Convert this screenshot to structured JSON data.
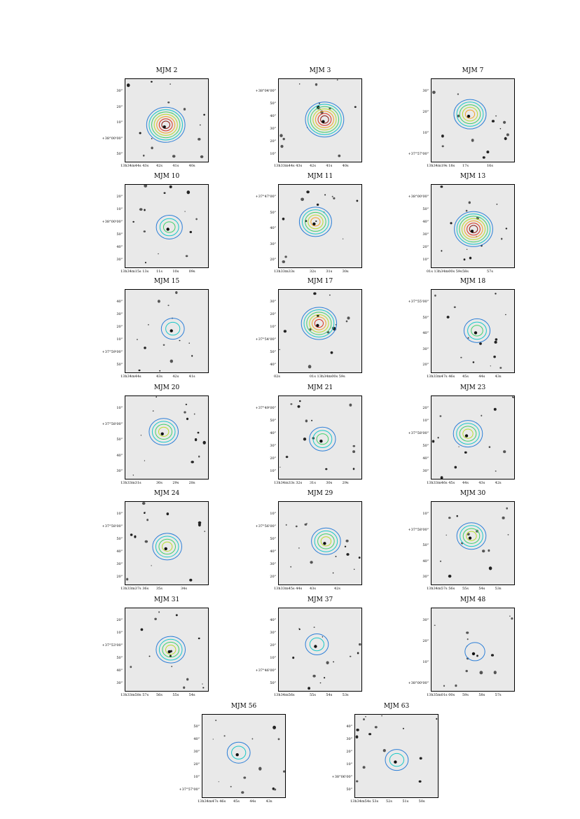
{
  "panels": [
    {
      "title": "MJM 2",
      "x_labels": [
        "13h34m44s 43s",
        "42s",
        "41s",
        "40s"
      ],
      "y_labels": [
        "30\"",
        "20\"",
        "10\"",
        "+38°00'00\"",
        "50\""
      ],
      "y_major_index": 3
    },
    {
      "title": "MJM 3",
      "x_labels": [
        "13h33m44s 43s",
        "42s",
        "41s",
        "40s"
      ],
      "y_labels": [
        "+38°04'00\"",
        "50\"",
        "40\"",
        "30\"",
        "20\"",
        "10\""
      ],
      "y_major_index": 0
    },
    {
      "title": "MJM 7",
      "x_labels": [
        "13h34m19s 18s",
        "17s",
        "16s"
      ],
      "y_labels": [
        "30\"",
        "20\"",
        "10\"",
        "+37°57'00\""
      ],
      "y_major_index": 3
    },
    {
      "title": "MJM 10",
      "x_labels": [
        "13h34m15s 13s",
        "11s",
        "10s",
        "09s"
      ],
      "y_labels": [
        "20\"",
        "10\"",
        "+38°00'00\"",
        "50\"",
        "40\"",
        "30\""
      ],
      "y_major_index": 2
    },
    {
      "title": "MJM 11",
      "x_labels": [
        "13h33m33s",
        "32s",
        "31s",
        "30s"
      ],
      "y_labels": [
        "+37°47'00\"",
        "50\"",
        "40\"",
        "30\"",
        "20\""
      ],
      "y_major_index": 0
    },
    {
      "title": "MJM 13",
      "x_labels": [
        "01s 13h34m00s 59s",
        "58s",
        "57s"
      ],
      "y_labels": [
        "+38°00'00\"",
        "50\"",
        "40\"",
        "30\"",
        "20\"",
        "10\""
      ],
      "y_major_index": 0
    },
    {
      "title": "MJM 15",
      "x_labels": [
        "13h34m44s",
        "43s",
        "42s",
        "41s"
      ],
      "y_labels": [
        "40\"",
        "30\"",
        "20\"",
        "10\"",
        "+37°59'00\"",
        "50\""
      ],
      "y_major_index": 4
    },
    {
      "title": "MJM 17",
      "x_labels": [
        "02s",
        "01s 13h34m00s 59s"
      ],
      "y_labels": [
        "30\"",
        "20\"",
        "10\"",
        "+37°54'00\"",
        "50\"",
        "40\""
      ],
      "y_major_index": 3
    },
    {
      "title": "MJM 18",
      "x_labels": [
        "13h33m47s 46s",
        "45s",
        "44s",
        "43s"
      ],
      "y_labels": [
        "+37°55'00\"",
        "50\"",
        "40\"",
        "30\"",
        "20\""
      ],
      "y_major_index": 0
    },
    {
      "title": "MJM 20",
      "x_labels": [
        "13h33m31s",
        "30s",
        "29s",
        "28s"
      ],
      "y_labels": [
        "10\"",
        "+37°58'00\"",
        "50\"",
        "40\"",
        "30\""
      ],
      "y_major_index": 1
    },
    {
      "title": "MJM 21",
      "x_labels": [
        "13h34m33s 32s",
        "31s",
        "30s",
        "29s"
      ],
      "y_labels": [
        "+37°49'00\"",
        "50\"",
        "40\"",
        "30\"",
        "20\"",
        "10\""
      ],
      "y_major_index": 0
    },
    {
      "title": "MJM 23",
      "x_labels": [
        "13h33m46s 45s",
        "44s",
        "43s",
        "42s"
      ],
      "y_labels": [
        "20\"",
        "10\"",
        "+37°58'00\"",
        "50\"",
        "40\"",
        "30\""
      ],
      "y_major_index": 2
    },
    {
      "title": "MJM 24",
      "x_labels": [
        "13h33m37s 36s",
        "35s",
        "34s"
      ],
      "y_labels": [
        "10\"",
        "+37°58'00\"",
        "50\"",
        "40\"",
        "30\"",
        "20\""
      ],
      "y_major_index": 1
    },
    {
      "title": "MJM 29",
      "x_labels": [
        "13h33m45s 44s",
        "43s",
        "42s"
      ],
      "y_labels": [
        "10\"",
        "+37°56'00\"",
        "50\"",
        "40\"",
        "30\"",
        "20\""
      ],
      "y_major_index": 1
    },
    {
      "title": "MJM 30",
      "x_labels": [
        "13h34m57s 56s",
        "55s",
        "54s",
        "53s"
      ],
      "y_labels": [
        "10\"",
        "+37°58'00\"",
        "50\"",
        "40\"",
        "30\""
      ],
      "y_major_index": 1
    },
    {
      "title": "MJM 31",
      "x_labels": [
        "13h33m58s 57s",
        "56s",
        "55s",
        "54s"
      ],
      "y_labels": [
        "20\"",
        "10\"",
        "+37°53'00\"",
        "50\"",
        "40\"",
        "30\""
      ],
      "y_major_index": 2
    },
    {
      "title": "MJM 37",
      "x_labels": [
        "13h34m56s",
        "55s",
        "54s",
        "53s"
      ],
      "y_labels": [
        "40\"",
        "30\"",
        "20\"",
        "10\"",
        "+37°46'00\"",
        "50\""
      ],
      "y_major_index": 4
    },
    {
      "title": "MJM 48",
      "x_labels": [
        "13h35m01s 00s",
        "59s",
        "58s",
        "57s"
      ],
      "y_labels": [
        "30\"",
        "20\"",
        "10\"",
        "+38°00'00\""
      ],
      "y_major_index": 3
    },
    {
      "title": "MJM 56",
      "x_labels": [
        "13h34m47s 46s",
        "45s",
        "44s",
        "43s"
      ],
      "y_labels": [
        "50\"",
        "40\"",
        "30\"",
        "20\"",
        "10\"",
        "+37°57'00\""
      ],
      "y_major_index": 5
    },
    {
      "title": "MJM 63",
      "x_labels": [
        "13h34m54s 53s",
        "52s",
        "51s",
        "50s"
      ],
      "y_labels": [
        "40\"",
        "30\"",
        "20\"",
        "10\"",
        "+38°06'00\"",
        "50\""
      ],
      "y_major_index": 4
    }
  ]
}
